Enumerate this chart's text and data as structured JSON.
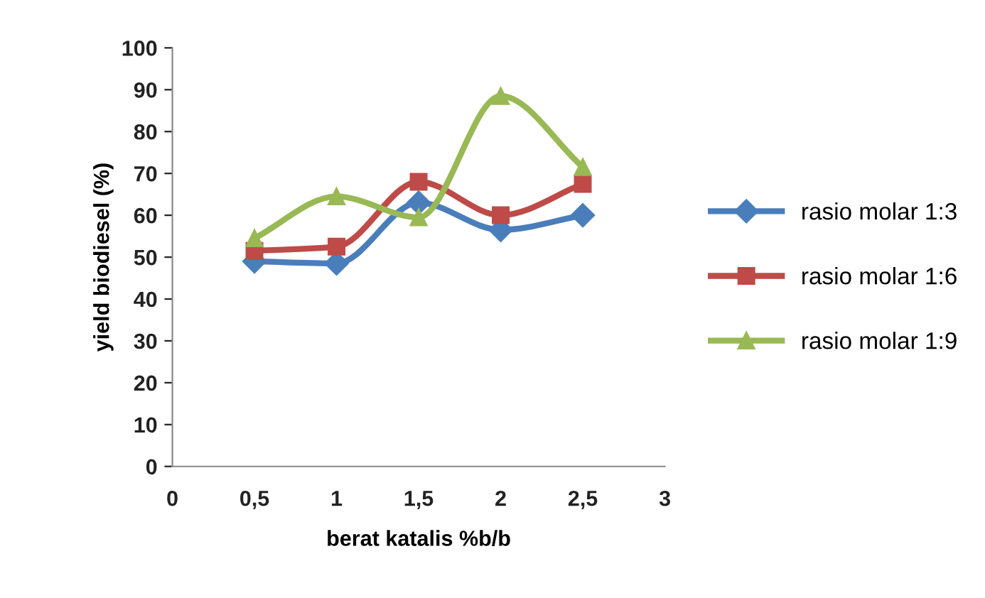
{
  "chart_data": {
    "type": "line",
    "xlabel": "berat katalis %b/b",
    "ylabel": "yield biodiesel (%)",
    "xlim": [
      0,
      3
    ],
    "xticks": [
      0,
      {
        "value": 0.5,
        "label": "0,5"
      },
      1,
      {
        "value": 1.5,
        "label": "1,5"
      },
      2,
      {
        "value": 2.5,
        "label": "2,5"
      },
      3
    ],
    "ylim": [
      0,
      100
    ],
    "yticks": [
      0,
      10,
      20,
      30,
      40,
      50,
      60,
      70,
      80,
      90,
      100
    ],
    "x": [
      0.5,
      1,
      1.5,
      2,
      2.5
    ],
    "grid": false,
    "legend": "right",
    "line_style": "solid",
    "series": [
      {
        "name": "rasio molar 1:3",
        "color": "#4a7ebb",
        "marker": "diamond",
        "values": [
          49,
          48.5,
          63,
          56.5,
          60
        ]
      },
      {
        "name": "rasio molar 1:6",
        "color": "#be4b48",
        "marker": "square",
        "values": [
          51.5,
          52.5,
          68,
          60,
          67.5
        ]
      },
      {
        "name": "rasio molar 1:9",
        "color": "#98b954",
        "marker": "triangle",
        "values": [
          54.5,
          64.5,
          59.5,
          88.5,
          71.5
        ]
      }
    ]
  }
}
